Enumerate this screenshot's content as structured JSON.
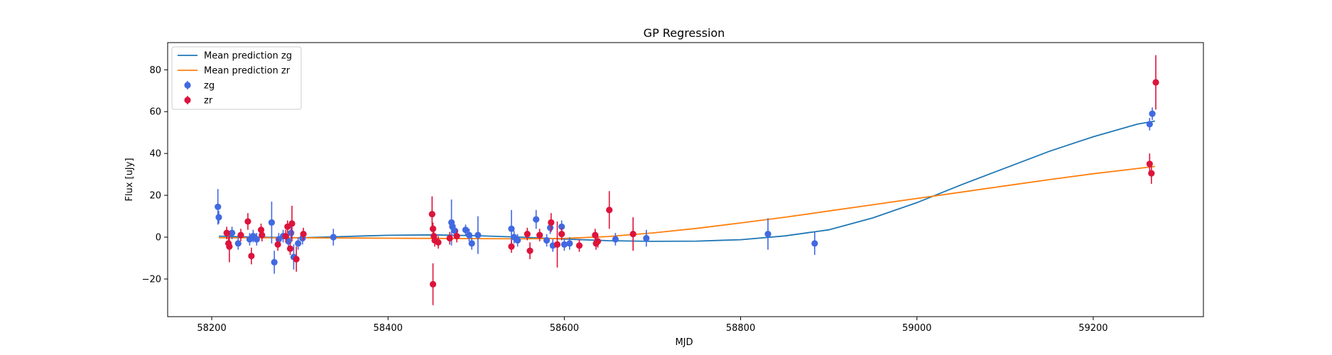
{
  "chart_data": {
    "type": "scatter",
    "title": "GP Regression",
    "xlabel": "MJD",
    "ylabel": "Flux [uJy]",
    "xlim": [
      58150,
      59325
    ],
    "ylim": [
      -38,
      93
    ],
    "xticks": [
      58200,
      58400,
      58600,
      58800,
      59000,
      59200
    ],
    "yticks": [
      -20,
      0,
      20,
      40,
      60,
      80
    ],
    "grid": false,
    "legend_position": "upper-left",
    "colors": {
      "zg_line": "#1f77b4",
      "zr_line": "#ff7f0e",
      "zg_points": "#4169e1",
      "zr_points": "#dc143c"
    },
    "legend": [
      {
        "label": "Mean prediction zg",
        "kind": "line",
        "color": "#1f77b4"
      },
      {
        "label": "Mean prediction zr",
        "kind": "line",
        "color": "#ff7f0e"
      },
      {
        "label": "zg",
        "kind": "errorbar",
        "color": "#4169e1"
      },
      {
        "label": "zr",
        "kind": "errorbar",
        "color": "#dc143c"
      }
    ],
    "lines": [
      {
        "name": "Mean prediction zg",
        "color": "#1f77b4",
        "x": [
          58208,
          58250,
          58300,
          58350,
          58400,
          58450,
          58500,
          58550,
          58600,
          58650,
          58700,
          58750,
          58800,
          58850,
          58900,
          58950,
          59000,
          59050,
          59100,
          59150,
          59200,
          59250,
          59270
        ],
        "y": [
          0.5,
          0.0,
          -0.3,
          0.3,
          0.9,
          1.1,
          0.7,
          0.0,
          -0.9,
          -1.7,
          -2.0,
          -1.9,
          -1.2,
          0.6,
          3.5,
          9.2,
          16.5,
          25,
          33,
          41,
          48,
          54,
          55.5
        ]
      },
      {
        "name": "Mean prediction zr",
        "color": "#ff7f0e",
        "x": [
          58208,
          58250,
          58300,
          58350,
          58400,
          58450,
          58500,
          58550,
          58600,
          58650,
          58700,
          58750,
          58800,
          58850,
          58900,
          58950,
          59000,
          59050,
          59100,
          59150,
          59200,
          59250,
          59270
        ],
        "y": [
          -0.3,
          -0.3,
          -0.3,
          -0.4,
          -0.5,
          -0.6,
          -0.7,
          -0.8,
          -0.6,
          0.3,
          2.0,
          4.2,
          6.8,
          9.5,
          12.5,
          15.5,
          18.5,
          21.5,
          24.5,
          27.5,
          30.3,
          32.8,
          33.8
        ]
      }
    ],
    "series": [
      {
        "name": "zg",
        "color": "#4169e1",
        "points": [
          {
            "x": 58207,
            "y": 14.5,
            "err": 8.5
          },
          {
            "x": 58208,
            "y": 9.5,
            "err": 3
          },
          {
            "x": 58223,
            "y": 2,
            "err": 3
          },
          {
            "x": 58230,
            "y": -3,
            "err": 3
          },
          {
            "x": 58243,
            "y": -1,
            "err": 3
          },
          {
            "x": 58247,
            "y": 0.5,
            "err": 3
          },
          {
            "x": 58251,
            "y": -1,
            "err": 3
          },
          {
            "x": 58268,
            "y": 7,
            "err": 10
          },
          {
            "x": 58271,
            "y": -12,
            "err": 5.5
          },
          {
            "x": 58276,
            "y": -1,
            "err": 3
          },
          {
            "x": 58281,
            "y": 0.5,
            "err": 3
          },
          {
            "x": 58287,
            "y": -2,
            "err": 4
          },
          {
            "x": 58290,
            "y": 2,
            "err": 3
          },
          {
            "x": 58293,
            "y": -9.5,
            "err": 6
          },
          {
            "x": 58298,
            "y": -3,
            "err": 3
          },
          {
            "x": 58303,
            "y": -0.5,
            "err": 3
          },
          {
            "x": 58338,
            "y": 0,
            "err": 4
          },
          {
            "x": 58472,
            "y": 7,
            "err": 11
          },
          {
            "x": 58473,
            "y": 5,
            "err": 3
          },
          {
            "x": 58476,
            "y": 3,
            "err": 3
          },
          {
            "x": 58488,
            "y": 3.5,
            "err": 2.5
          },
          {
            "x": 58492,
            "y": 1,
            "err": 3
          },
          {
            "x": 58495,
            "y": -3,
            "err": 3
          },
          {
            "x": 58502,
            "y": 1,
            "err": 9
          },
          {
            "x": 58540,
            "y": 4,
            "err": 9
          },
          {
            "x": 58543,
            "y": 0,
            "err": 3
          },
          {
            "x": 58547,
            "y": -1.5,
            "err": 3
          },
          {
            "x": 58568,
            "y": 8.5,
            "err": 4.5
          },
          {
            "x": 58580,
            "y": -1.5,
            "err": 3
          },
          {
            "x": 58584,
            "y": 4.5,
            "err": 3
          },
          {
            "x": 58587,
            "y": -4,
            "err": 3
          },
          {
            "x": 58597,
            "y": 5,
            "err": 3
          },
          {
            "x": 58600,
            "y": -3.5,
            "err": 3
          },
          {
            "x": 58606,
            "y": -3,
            "err": 3
          },
          {
            "x": 58658,
            "y": -1,
            "err": 3
          },
          {
            "x": 58693,
            "y": -0.5,
            "err": 4
          },
          {
            "x": 58831,
            "y": 1.5,
            "err": 7.5
          },
          {
            "x": 58884,
            "y": -3,
            "err": 5.5
          },
          {
            "x": 59264,
            "y": 54,
            "err": 3
          },
          {
            "x": 59267,
            "y": 59,
            "err": 3
          }
        ]
      },
      {
        "name": "zr",
        "color": "#dc143c",
        "points": [
          {
            "x": 58217,
            "y": 2,
            "err": 3
          },
          {
            "x": 58219,
            "y": -3,
            "err": 3
          },
          {
            "x": 58220,
            "y": -4.5,
            "err": 7.5
          },
          {
            "x": 58233,
            "y": 1,
            "err": 3
          },
          {
            "x": 58241,
            "y": 7.5,
            "err": 4
          },
          {
            "x": 58245,
            "y": -9,
            "err": 4
          },
          {
            "x": 58256,
            "y": 3.5,
            "err": 3
          },
          {
            "x": 58257,
            "y": 1,
            "err": 3
          },
          {
            "x": 58275,
            "y": -3.5,
            "err": 3
          },
          {
            "x": 58284,
            "y": 0.5,
            "err": 3
          },
          {
            "x": 58286,
            "y": 5,
            "err": 3
          },
          {
            "x": 58289,
            "y": -5.5,
            "err": 3
          },
          {
            "x": 58291,
            "y": 6.5,
            "err": 8.5
          },
          {
            "x": 58296,
            "y": -10.5,
            "err": 6
          },
          {
            "x": 58304,
            "y": 1.5,
            "err": 3
          },
          {
            "x": 58450,
            "y": 11,
            "err": 8.5
          },
          {
            "x": 58451,
            "y": 4,
            "err": 3
          },
          {
            "x": 58452,
            "y": 0.5,
            "err": 3
          },
          {
            "x": 58453,
            "y": -1.5,
            "err": 3
          },
          {
            "x": 58451,
            "y": -22.5,
            "err": 10
          },
          {
            "x": 58457,
            "y": -2.5,
            "err": 3
          },
          {
            "x": 58470,
            "y": -0.5,
            "err": 3
          },
          {
            "x": 58478,
            "y": 0.5,
            "err": 3
          },
          {
            "x": 58540,
            "y": -4.5,
            "err": 3
          },
          {
            "x": 58558,
            "y": 1.5,
            "err": 3
          },
          {
            "x": 58561,
            "y": -6.5,
            "err": 4
          },
          {
            "x": 58572,
            "y": 1,
            "err": 3
          },
          {
            "x": 58585,
            "y": 7,
            "err": 4.5
          },
          {
            "x": 58592,
            "y": -3.5,
            "err": 11
          },
          {
            "x": 58597,
            "y": 1.5,
            "err": 3
          },
          {
            "x": 58617,
            "y": -4,
            "err": 3
          },
          {
            "x": 58635,
            "y": 1,
            "err": 3
          },
          {
            "x": 58636,
            "y": -3,
            "err": 3
          },
          {
            "x": 58638,
            "y": -2,
            "err": 3
          },
          {
            "x": 58651,
            "y": 13,
            "err": 9
          },
          {
            "x": 58678,
            "y": 1.5,
            "err": 8
          },
          {
            "x": 59264,
            "y": 35,
            "err": 5
          },
          {
            "x": 59266,
            "y": 30.5,
            "err": 5
          },
          {
            "x": 59271,
            "y": 74,
            "err": 13
          }
        ]
      }
    ]
  }
}
